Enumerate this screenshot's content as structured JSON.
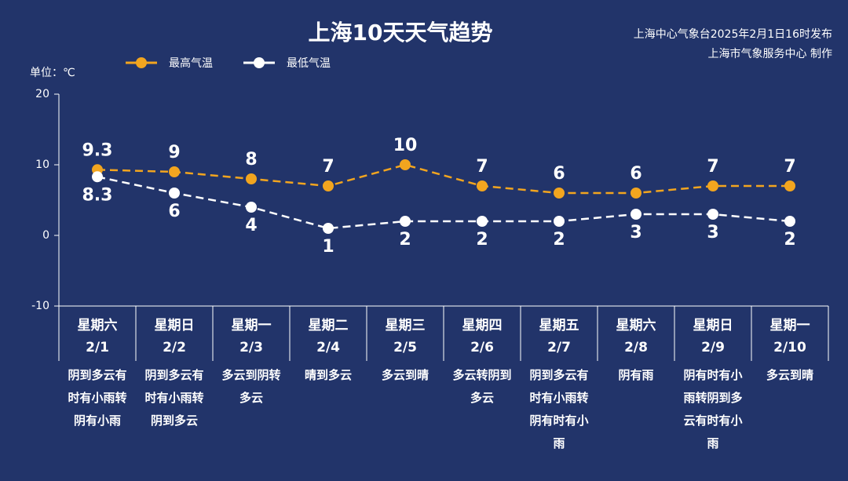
{
  "chart_data": {
    "type": "line",
    "title": "上海10天天气趋势",
    "source_lines": [
      "上海中心气象台2025年2月1日16时发布",
      "上海市气象服务中心 制作"
    ],
    "unit_label": "单位：℃",
    "weekdays": [
      "星期六",
      "星期日",
      "星期一",
      "星期二",
      "星期三",
      "星期四",
      "星期五",
      "星期六",
      "星期日",
      "星期一"
    ],
    "categories": [
      "2/1",
      "2/2",
      "2/3",
      "2/4",
      "2/5",
      "2/6",
      "2/7",
      "2/8",
      "2/9",
      "2/10"
    ],
    "weather": [
      "阴到多云有时有小雨转阴有小雨",
      "阴到多云有时有小雨转阴到多云",
      "多云到阴转多云",
      "晴到多云",
      "多云到晴",
      "多云转阴到多云",
      "阴到多云有时有小雨转阴有时有小雨",
      "阴有雨",
      "阴有时有小雨转阴到多云有时有小雨",
      "多云到晴"
    ],
    "series": [
      {
        "name": "最高气温",
        "color": "#f2a51f",
        "values": [
          9.3,
          9,
          8,
          7,
          10,
          7,
          6,
          6,
          7,
          7
        ]
      },
      {
        "name": "最低气温",
        "color": "#ffffff",
        "values": [
          8.3,
          6,
          4,
          1,
          2,
          2,
          2,
          3,
          3,
          2
        ]
      }
    ],
    "ylim": [
      -10,
      20
    ],
    "yticks": [
      -10,
      0,
      10,
      20
    ]
  }
}
